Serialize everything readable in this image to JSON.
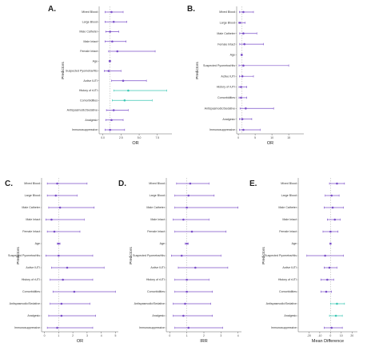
{
  "colors": {
    "purple": "#7b4fc9",
    "teal": "#3cc7b4",
    "axis": "#666666",
    "ref": "#aaaaaa"
  },
  "chart_data": [
    {
      "type": "scatter",
      "panel": "A.",
      "xlabel": "OR",
      "ylabel": "Predictors",
      "xlim": [
        -0.5,
        9.5
      ],
      "ref_line": 1,
      "xticks": [
        0.0,
        2.5,
        5.0,
        7.5
      ],
      "categories": [
        "Mixed Blood",
        "Large Blood",
        "Male Catheter",
        "Male Intact",
        "Female Intact",
        "Age",
        "Suspected Pyometra/ritis",
        "Active IUTI",
        "History of rUTI",
        "Comorbidities",
        "Antispasmodic/Sedative",
        "Analgesic",
        "Immunosuppressive"
      ],
      "points": [
        {
          "est": 1.2,
          "lo": 0.3,
          "hi": 2.8,
          "color": "purple"
        },
        {
          "est": 1.5,
          "lo": 0.3,
          "hi": 3.3,
          "color": "purple"
        },
        {
          "est": 1.0,
          "lo": 0.4,
          "hi": 2.2,
          "color": "purple"
        },
        {
          "est": 1.3,
          "lo": 0.3,
          "hi": 3.2,
          "color": "purple"
        },
        {
          "est": 2.0,
          "lo": 0.8,
          "hi": 7.2,
          "color": "purple"
        },
        {
          "est": 0.95,
          "lo": 0.85,
          "hi": 1.1,
          "color": "purple"
        },
        {
          "est": 0.8,
          "lo": 0.2,
          "hi": 2.5,
          "color": "purple"
        },
        {
          "est": 2.8,
          "lo": 1.2,
          "hi": 6.0,
          "color": "purple"
        },
        {
          "est": 3.5,
          "lo": 1.5,
          "hi": 8.8,
          "color": "teal"
        },
        {
          "est": 3.0,
          "lo": 1.3,
          "hi": 6.8,
          "color": "teal"
        },
        {
          "est": 1.5,
          "lo": 0.5,
          "hi": 3.5,
          "color": "purple"
        },
        {
          "est": 1.2,
          "lo": 0.4,
          "hi": 2.8,
          "color": "purple"
        },
        {
          "est": 1.0,
          "lo": 0.3,
          "hi": 3.0,
          "color": "purple"
        }
      ]
    },
    {
      "type": "scatter",
      "panel": "B.",
      "xlabel": "OR",
      "ylabel": "Predictors",
      "xlim": [
        -0.5,
        19.5
      ],
      "ref_line": 1,
      "xticks": [
        0,
        5,
        10,
        15
      ],
      "categories": [
        "Mixed Blood",
        "Large Blood",
        "Male Catheter",
        "Female Intact",
        "Age",
        "Suspected Pyometra/ritis",
        "Active IUTI",
        "History of rUTI",
        "Comorbidities",
        "Antispasmodic/Sedative",
        "Analgesic",
        "Immunosuppressive"
      ],
      "points": [
        {
          "est": 1.5,
          "lo": 0.3,
          "hi": 4.5,
          "color": "purple"
        },
        {
          "est": 0.5,
          "lo": 0.1,
          "hi": 2.0,
          "color": "purple"
        },
        {
          "est": 1.5,
          "lo": 0.4,
          "hi": 5.5,
          "color": "purple"
        },
        {
          "est": 1.8,
          "lo": 0.4,
          "hi": 7.5,
          "color": "purple"
        },
        {
          "est": 1.0,
          "lo": 0.8,
          "hi": 1.2,
          "color": "purple"
        },
        {
          "est": 1.5,
          "lo": 0.2,
          "hi": 15.0,
          "color": "purple"
        },
        {
          "est": 1.2,
          "lo": 0.3,
          "hi": 4.5,
          "color": "purple"
        },
        {
          "est": 0.8,
          "lo": 0.2,
          "hi": 2.5,
          "color": "purple"
        },
        {
          "est": 0.8,
          "lo": 0.2,
          "hi": 2.5,
          "color": "purple"
        },
        {
          "est": 2.2,
          "lo": 0.5,
          "hi": 10.5,
          "color": "purple"
        },
        {
          "est": 1.2,
          "lo": 0.3,
          "hi": 4.0,
          "color": "purple"
        },
        {
          "est": 1.5,
          "lo": 0.3,
          "hi": 6.5,
          "color": "purple"
        }
      ]
    },
    {
      "type": "scatter",
      "panel": "C.",
      "xlabel": "OR",
      "ylabel": "Predictors",
      "xlim": [
        -0.2,
        5.2
      ],
      "ref_line": 1,
      "xticks": [
        0,
        1,
        2,
        3,
        4,
        5
      ],
      "categories": [
        "Mixed Blood",
        "Large Blood",
        "Male Catheter",
        "Male Intact",
        "Female Intact",
        "Age",
        "Suspected Pyometra/ritis",
        "Active IUTI",
        "History of rUTI",
        "Comorbidities",
        "Antispasmodic/Sedative",
        "Analgesic",
        "Immunosuppressive"
      ],
      "points": [
        {
          "est": 0.9,
          "lo": 0.2,
          "hi": 3.0,
          "color": "purple"
        },
        {
          "est": 0.8,
          "lo": 0.2,
          "hi": 2.3,
          "color": "purple"
        },
        {
          "est": 1.1,
          "lo": 0.3,
          "hi": 3.5,
          "color": "purple"
        },
        {
          "est": 0.5,
          "lo": 0.1,
          "hi": 2.8,
          "color": "purple"
        },
        {
          "est": 0.7,
          "lo": 0.2,
          "hi": 2.5,
          "color": "purple"
        },
        {
          "est": 1.0,
          "lo": 0.9,
          "hi": 1.1,
          "color": "purple"
        },
        {
          "est": 1.0,
          "lo": 0.1,
          "hi": 3.4,
          "color": "purple"
        },
        {
          "est": 1.6,
          "lo": 0.5,
          "hi": 4.2,
          "color": "purple"
        },
        {
          "est": 1.3,
          "lo": 0.4,
          "hi": 3.4,
          "color": "purple"
        },
        {
          "est": 2.1,
          "lo": 0.6,
          "hi": 5.0,
          "color": "purple"
        },
        {
          "est": 1.2,
          "lo": 0.4,
          "hi": 3.2,
          "color": "purple"
        },
        {
          "est": 1.2,
          "lo": 0.3,
          "hi": 3.6,
          "color": "purple"
        },
        {
          "est": 0.9,
          "lo": 0.2,
          "hi": 3.4,
          "color": "purple"
        }
      ]
    },
    {
      "type": "scatter",
      "panel": "D.",
      "xlabel": "IRR",
      "ylabel": "Predictors",
      "xlim": [
        -0.2,
        4.2
      ],
      "ref_line": 1,
      "xticks": [
        0,
        1,
        2,
        3,
        4
      ],
      "categories": [
        "Mixed Blood",
        "Large Blood",
        "Male Catheter",
        "Male Intact",
        "Female Intact",
        "Age",
        "Suspected Pyometra/ritis",
        "Active IUTI",
        "History of rUTI",
        "Comorbidities",
        "Antispasmodic/Sedative",
        "Analgesic",
        "Immunosuppressive"
      ],
      "points": [
        {
          "est": 1.2,
          "lo": 0.4,
          "hi": 2.3,
          "color": "purple"
        },
        {
          "est": 1.1,
          "lo": 0.3,
          "hi": 2.6,
          "color": "purple"
        },
        {
          "est": 1.0,
          "lo": 0.3,
          "hi": 4.0,
          "color": "purple"
        },
        {
          "est": 0.8,
          "lo": 0.2,
          "hi": 2.3,
          "color": "purple"
        },
        {
          "est": 1.3,
          "lo": 0.3,
          "hi": 3.3,
          "color": "purple"
        },
        {
          "est": 1.0,
          "lo": 0.9,
          "hi": 1.1,
          "color": "purple"
        },
        {
          "est": 0.7,
          "lo": 0.1,
          "hi": 3.0,
          "color": "purple"
        },
        {
          "est": 1.5,
          "lo": 0.5,
          "hi": 3.4,
          "color": "purple"
        },
        {
          "est": 1.0,
          "lo": 0.3,
          "hi": 2.3,
          "color": "purple"
        },
        {
          "est": 1.0,
          "lo": 0.3,
          "hi": 2.5,
          "color": "purple"
        },
        {
          "est": 0.9,
          "lo": 0.2,
          "hi": 2.4,
          "color": "purple"
        },
        {
          "est": 0.8,
          "lo": 0.2,
          "hi": 2.5,
          "color": "purple"
        },
        {
          "est": 1.1,
          "lo": 0.3,
          "hi": 3.1,
          "color": "purple"
        }
      ]
    },
    {
      "type": "scatter",
      "panel": "E.",
      "xlabel": "Mean Difference",
      "ylabel": "Predictors",
      "xlim": [
        -30,
        25
      ],
      "ref_line": 0,
      "xticks": [
        -20,
        -10,
        0,
        10,
        20
      ],
      "categories": [
        "Mixed Blood",
        "Large Blood",
        "Male Catheter",
        "Male Intact",
        "Female Intact",
        "Age",
        "Suspected Pyometra/ritis",
        "Active IUTI",
        "History of rUTI",
        "Comorbidities",
        "Antispasmodic/Sedative",
        "Analgesic",
        "Immunosuppressive"
      ],
      "points": [
        {
          "est": 6,
          "lo": -1,
          "hi": 13,
          "color": "purple"
        },
        {
          "est": 1,
          "lo": -5,
          "hi": 8,
          "color": "purple"
        },
        {
          "est": 2,
          "lo": -6,
          "hi": 12,
          "color": "purple"
        },
        {
          "est": 4,
          "lo": -3,
          "hi": 9,
          "color": "purple"
        },
        {
          "est": 0,
          "lo": -7,
          "hi": 7,
          "color": "purple"
        },
        {
          "est": 0,
          "lo": -0.5,
          "hi": 0.5,
          "color": "purple"
        },
        {
          "est": -5,
          "lo": -22,
          "hi": 12,
          "color": "purple"
        },
        {
          "est": -1,
          "lo": -6,
          "hi": 6,
          "color": "purple"
        },
        {
          "est": -3,
          "lo": -9,
          "hi": 3,
          "color": "purple"
        },
        {
          "est": -4,
          "lo": -9,
          "hi": 1,
          "color": "purple"
        },
        {
          "est": 6,
          "lo": 0,
          "hi": 13,
          "color": "teal"
        },
        {
          "est": 5,
          "lo": -1,
          "hi": 11,
          "color": "teal"
        },
        {
          "est": 1,
          "lo": -6,
          "hi": 11,
          "color": "purple"
        }
      ]
    }
  ]
}
